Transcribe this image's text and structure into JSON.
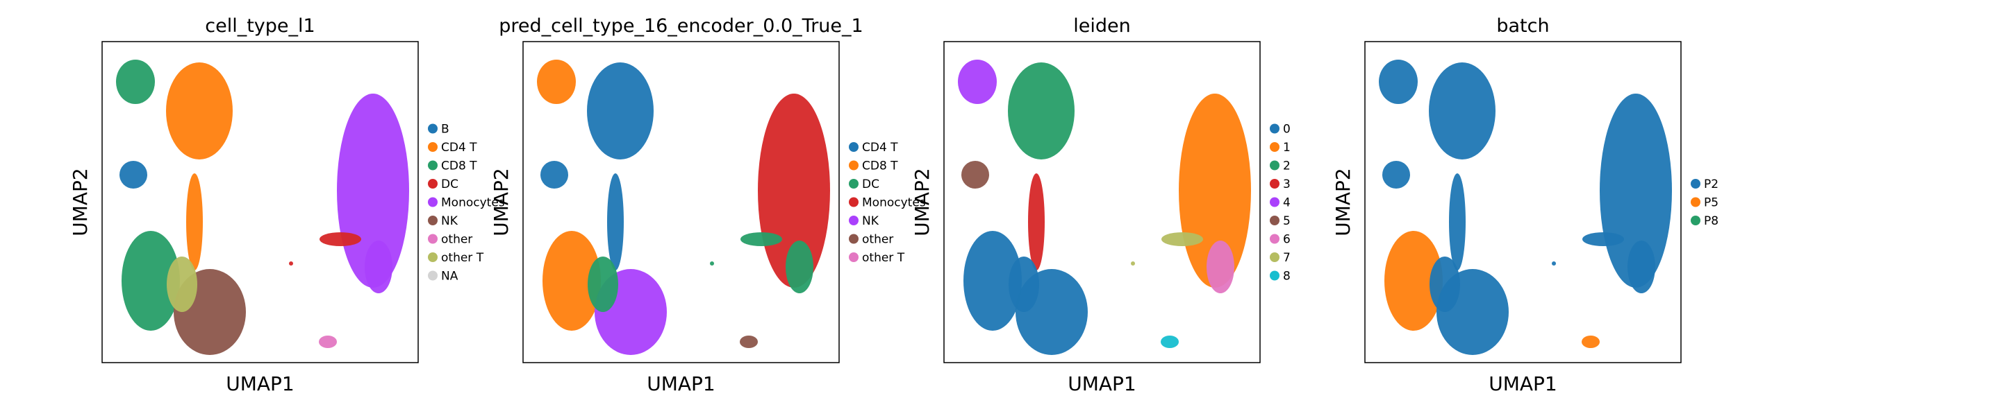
{
  "figure": {
    "panels": [
      {
        "title": "cell_type_l1",
        "xlabel": "UMAP1",
        "ylabel": "UMAP2",
        "legend": [
          {
            "label": "B",
            "color": "#1f77b4"
          },
          {
            "label": "CD4 T",
            "color": "#ff7f0e"
          },
          {
            "label": "CD8 T",
            "color": "#279e68"
          },
          {
            "label": "DC",
            "color": "#d62728"
          },
          {
            "label": "Monocytes",
            "color": "#aa40fc"
          },
          {
            "label": "NK",
            "color": "#8c564b"
          },
          {
            "label": "other",
            "color": "#e377c2"
          },
          {
            "label": "other T",
            "color": "#b5bd61"
          },
          {
            "label": "NA",
            "color": "#d3d3d3"
          }
        ],
        "clusters": {
          "TL": "#279e68",
          "TM": "#ff7f0e",
          "LM": "#1f77b4",
          "CNECK": "#ff7f0e",
          "BL": "#279e68",
          "BM": "#8c564b",
          "BMB": "#b5bd61",
          "RB": "#aa40fc",
          "RS": "#d62728",
          "RT": "#aa40fc",
          "BPINK": "#e377c2",
          "ST": "#d62728"
        }
      },
      {
        "title": "pred_cell_type_16_encoder_0.0_True_1",
        "xlabel": "UMAP1",
        "ylabel": "UMAP2",
        "legend": [
          {
            "label": "CD4 T",
            "color": "#1f77b4"
          },
          {
            "label": "CD8 T",
            "color": "#ff7f0e"
          },
          {
            "label": "DC",
            "color": "#279e68"
          },
          {
            "label": "Monocytes",
            "color": "#d62728"
          },
          {
            "label": "NK",
            "color": "#aa40fc"
          },
          {
            "label": "other",
            "color": "#8c564b"
          },
          {
            "label": "other T",
            "color": "#e377c2"
          }
        ],
        "clusters": {
          "TL": "#ff7f0e",
          "TM": "#1f77b4",
          "LM": "#1f77b4",
          "CNECK": "#1f77b4",
          "BL": "#ff7f0e",
          "BM": "#aa40fc",
          "BMB": "#279e68",
          "RB": "#d62728",
          "RS": "#279e68",
          "RT": "#279e68",
          "BPINK": "#8c564b",
          "ST": "#279e68"
        }
      },
      {
        "title": "leiden",
        "xlabel": "UMAP1",
        "ylabel": "UMAP2",
        "legend": [
          {
            "label": "0",
            "color": "#1f77b4"
          },
          {
            "label": "1",
            "color": "#ff7f0e"
          },
          {
            "label": "2",
            "color": "#279e68"
          },
          {
            "label": "3",
            "color": "#d62728"
          },
          {
            "label": "4",
            "color": "#aa40fc"
          },
          {
            "label": "5",
            "color": "#8c564b"
          },
          {
            "label": "6",
            "color": "#e377c2"
          },
          {
            "label": "7",
            "color": "#b5bd61"
          },
          {
            "label": "8",
            "color": "#17becf"
          }
        ],
        "clusters": {
          "TL": "#aa40fc",
          "TM": "#279e68",
          "LM": "#8c564b",
          "CNECK": "#d62728",
          "BL": "#1f77b4",
          "BM": "#1f77b4",
          "BMB": "#1f77b4",
          "RB": "#ff7f0e",
          "RS": "#b5bd61",
          "RT": "#e377c2",
          "BPINK": "#17becf",
          "ST": "#b5bd61"
        }
      },
      {
        "title": "batch",
        "xlabel": "UMAP1",
        "ylabel": "UMAP2",
        "legend": [
          {
            "label": "P2",
            "color": "#1f77b4"
          },
          {
            "label": "P5",
            "color": "#ff7f0e"
          },
          {
            "label": "P8",
            "color": "#279e68"
          }
        ],
        "clusters": {
          "TL": "#1f77b4",
          "TM": "#1f77b4",
          "LM": "#1f77b4",
          "CNECK": "#1f77b4",
          "BL": "#ff7f0e",
          "BM": "#1f77b4",
          "BMB": "#1f77b4",
          "RB": "#1f77b4",
          "RS": "#1f77b4",
          "RT": "#1f77b4",
          "BPINK": "#ff7f0e",
          "ST": "#1f77b4"
        }
      }
    ]
  },
  "chart_data": [
    {
      "type": "scatter",
      "title": "cell_type_l1",
      "xlabel": "UMAP1",
      "ylabel": "UMAP2",
      "series": [
        {
          "name": "B"
        },
        {
          "name": "CD4 T"
        },
        {
          "name": "CD8 T"
        },
        {
          "name": "DC"
        },
        {
          "name": "Monocytes"
        },
        {
          "name": "NK"
        },
        {
          "name": "other"
        },
        {
          "name": "other T"
        },
        {
          "name": "NA"
        }
      ],
      "legend": "right",
      "grid": false
    },
    {
      "type": "scatter",
      "title": "pred_cell_type_16_encoder_0.0_True_1",
      "xlabel": "UMAP1",
      "ylabel": "UMAP2",
      "series": [
        {
          "name": "CD4 T"
        },
        {
          "name": "CD8 T"
        },
        {
          "name": "DC"
        },
        {
          "name": "Monocytes"
        },
        {
          "name": "NK"
        },
        {
          "name": "other"
        },
        {
          "name": "other T"
        }
      ],
      "legend": "right",
      "grid": false
    },
    {
      "type": "scatter",
      "title": "leiden",
      "xlabel": "UMAP1",
      "ylabel": "UMAP2",
      "series": [
        {
          "name": "0"
        },
        {
          "name": "1"
        },
        {
          "name": "2"
        },
        {
          "name": "3"
        },
        {
          "name": "4"
        },
        {
          "name": "5"
        },
        {
          "name": "6"
        },
        {
          "name": "7"
        },
        {
          "name": "8"
        }
      ],
      "legend": "right",
      "grid": false
    },
    {
      "type": "scatter",
      "title": "batch",
      "xlabel": "UMAP1",
      "ylabel": "UMAP2",
      "series": [
        {
          "name": "P2"
        },
        {
          "name": "P5"
        },
        {
          "name": "P8"
        }
      ],
      "legend": "right",
      "grid": false
    }
  ]
}
